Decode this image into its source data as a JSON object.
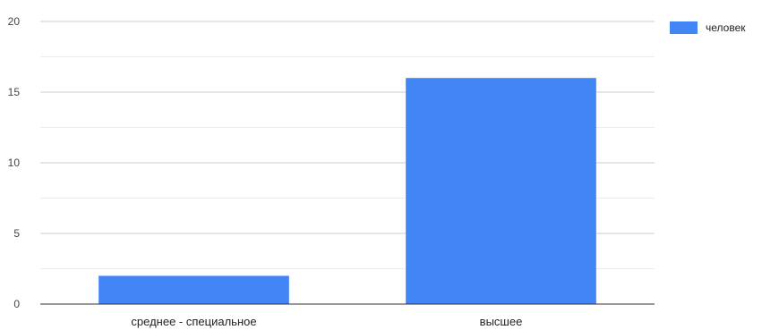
{
  "chart_data": {
    "type": "bar",
    "categories": [
      "среднее - специальное",
      "высшее"
    ],
    "series": [
      {
        "name": "человек",
        "values": [
          2,
          16
        ],
        "color": "#4285f4"
      }
    ],
    "ylim": [
      0,
      20
    ],
    "yticks": [
      0,
      5,
      10,
      15,
      20
    ],
    "grid": true,
    "legend_position": "right"
  }
}
